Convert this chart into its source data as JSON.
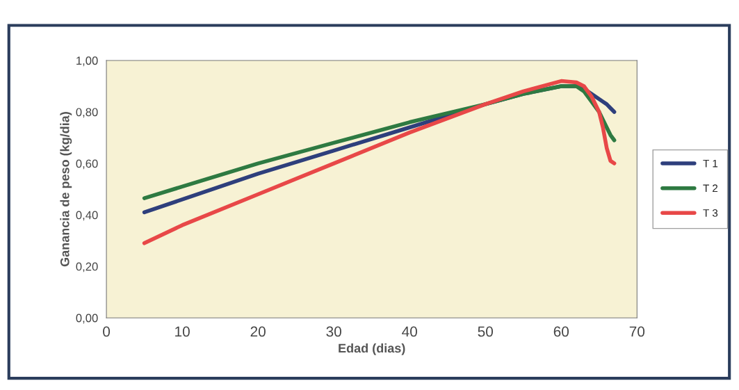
{
  "chart_data": {
    "type": "line",
    "xlabel": "Edad (dias)",
    "ylabel": "Ganancia de peso (kg/dia)",
    "x": [
      5,
      10,
      20,
      30,
      40,
      50,
      55,
      60,
      62,
      63,
      64,
      65,
      65.5,
      66,
      66.5,
      67
    ],
    "series": [
      {
        "name": "T 1",
        "color": "#2e3f7c",
        "values": [
          0.41,
          0.46,
          0.56,
          0.65,
          0.74,
          0.83,
          0.87,
          0.9,
          0.9,
          0.89,
          0.87,
          0.85,
          0.84,
          0.83,
          0.815,
          0.8
        ]
      },
      {
        "name": "T 2",
        "color": "#2e7a42",
        "values": [
          0.465,
          0.51,
          0.6,
          0.68,
          0.76,
          0.83,
          0.87,
          0.9,
          0.9,
          0.88,
          0.84,
          0.8,
          0.77,
          0.74,
          0.71,
          0.69
        ]
      },
      {
        "name": "T 3",
        "color": "#e84848",
        "values": [
          0.29,
          0.36,
          0.48,
          0.6,
          0.72,
          0.83,
          0.88,
          0.92,
          0.915,
          0.9,
          0.86,
          0.8,
          0.74,
          0.66,
          0.61,
          0.6
        ]
      }
    ],
    "xlim": [
      0,
      70
    ],
    "xticks": [
      0,
      10,
      20,
      30,
      40,
      50,
      60,
      70
    ],
    "ylim": [
      0,
      1
    ],
    "yticks": [
      {
        "value": 0,
        "label": "0,00"
      },
      {
        "value": 0.2,
        "label": "0,20"
      },
      {
        "value": 0.4,
        "label": "0,40"
      },
      {
        "value": 0.6,
        "label": "0,60"
      },
      {
        "value": 0.8,
        "label": "0,80"
      },
      {
        "value": 1,
        "label": "1,00"
      }
    ],
    "grid": false,
    "legend": "right",
    "line_style": "solid",
    "marker": "none"
  }
}
